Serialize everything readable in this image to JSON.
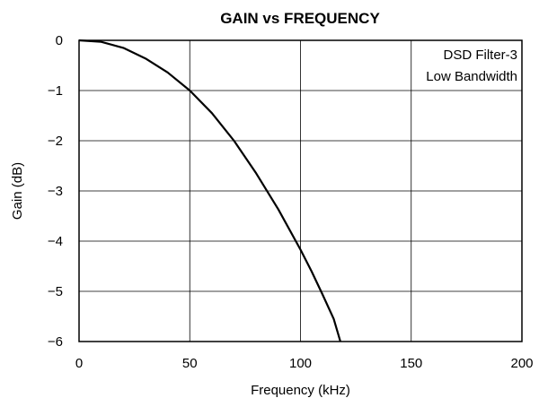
{
  "chart_data": {
    "type": "line",
    "title": "GAIN vs FREQUENCY",
    "xlabel": "Frequency (kHz)",
    "ylabel": "Gain (dB)",
    "xlim": [
      0,
      200
    ],
    "ylim": [
      -6,
      0
    ],
    "xticks": [
      0,
      50,
      100,
      150,
      200
    ],
    "yticks": [
      0,
      -1,
      -2,
      -3,
      -4,
      -5,
      -6
    ],
    "xtick_labels": [
      "0",
      "50",
      "100",
      "150",
      "200"
    ],
    "ytick_labels": [
      "0",
      "−1",
      "−2",
      "−3",
      "−4",
      "−5",
      "−6"
    ],
    "grid": true,
    "annotation": [
      "DSD Filter-3",
      "Low Bandwidth"
    ],
    "annotation_placement": "top-right",
    "series": [
      {
        "color": "#000000",
        "x": [
          0,
          10,
          20,
          30,
          40,
          50,
          60,
          70,
          80,
          90,
          100,
          105,
          110,
          115,
          118
        ],
        "y": [
          0,
          -0.03,
          -0.15,
          -0.36,
          -0.64,
          -1.0,
          -1.45,
          -2.0,
          -2.65,
          -3.37,
          -4.17,
          -4.6,
          -5.07,
          -5.55,
          -6.0
        ]
      }
    ]
  }
}
